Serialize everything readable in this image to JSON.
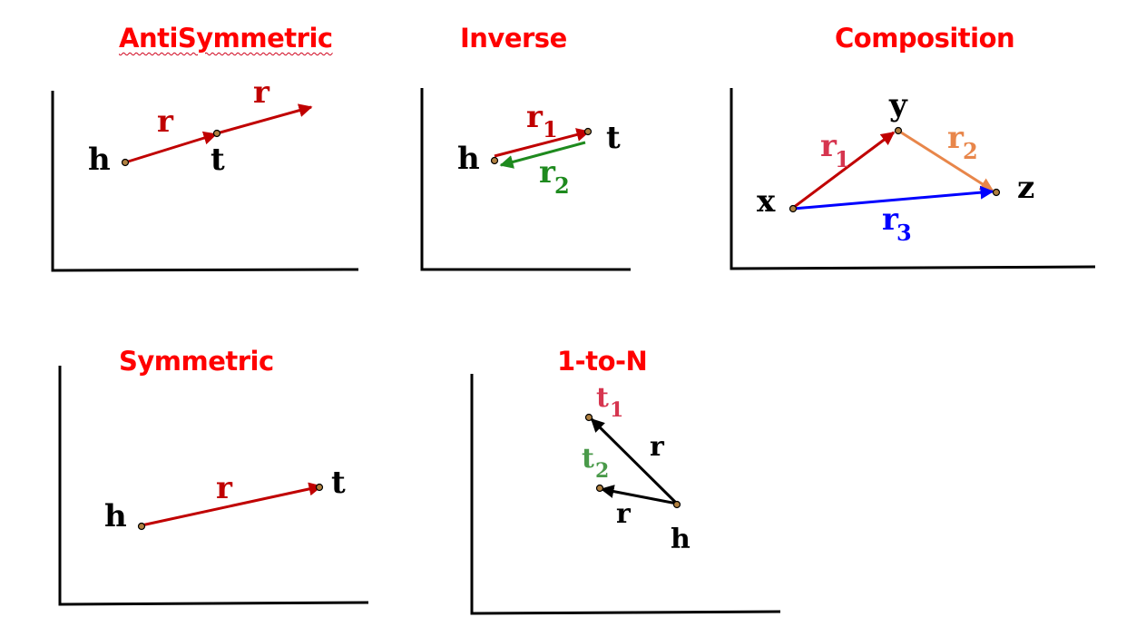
{
  "panels": {
    "antisymmetric": {
      "title": "AntiSymmetric",
      "head": "h",
      "tail": "t",
      "rel1": "r",
      "rel2": "r"
    },
    "inverse": {
      "title": "Inverse",
      "head": "h",
      "tail": "t",
      "r1": "r",
      "r1_sub": "1",
      "r2": "r",
      "r2_sub": "2"
    },
    "composition": {
      "title": "Composition",
      "x": "x",
      "y": "y",
      "z": "z",
      "r1": "r",
      "r1_sub": "1",
      "r2": "r",
      "r2_sub": "2",
      "r3": "r",
      "r3_sub": "3"
    },
    "symmetric": {
      "title": "Symmetric",
      "head": "h",
      "tail": "t",
      "rel": "r"
    },
    "one_to_n": {
      "title": "1-to-N",
      "head": "h",
      "t1": "t",
      "t1_sub": "1",
      "t2": "t",
      "t2_sub": "2",
      "rel1": "r",
      "rel2": "r"
    }
  },
  "colors": {
    "title": "#ff0000",
    "dark_red": "#c00000",
    "green": "#1e8a1e",
    "blue": "#0000ff",
    "orange": "#e8864a",
    "pink": "#d6354f",
    "light_green": "#4a9a4a",
    "black": "#000000",
    "node_fill": "#b08040"
  }
}
